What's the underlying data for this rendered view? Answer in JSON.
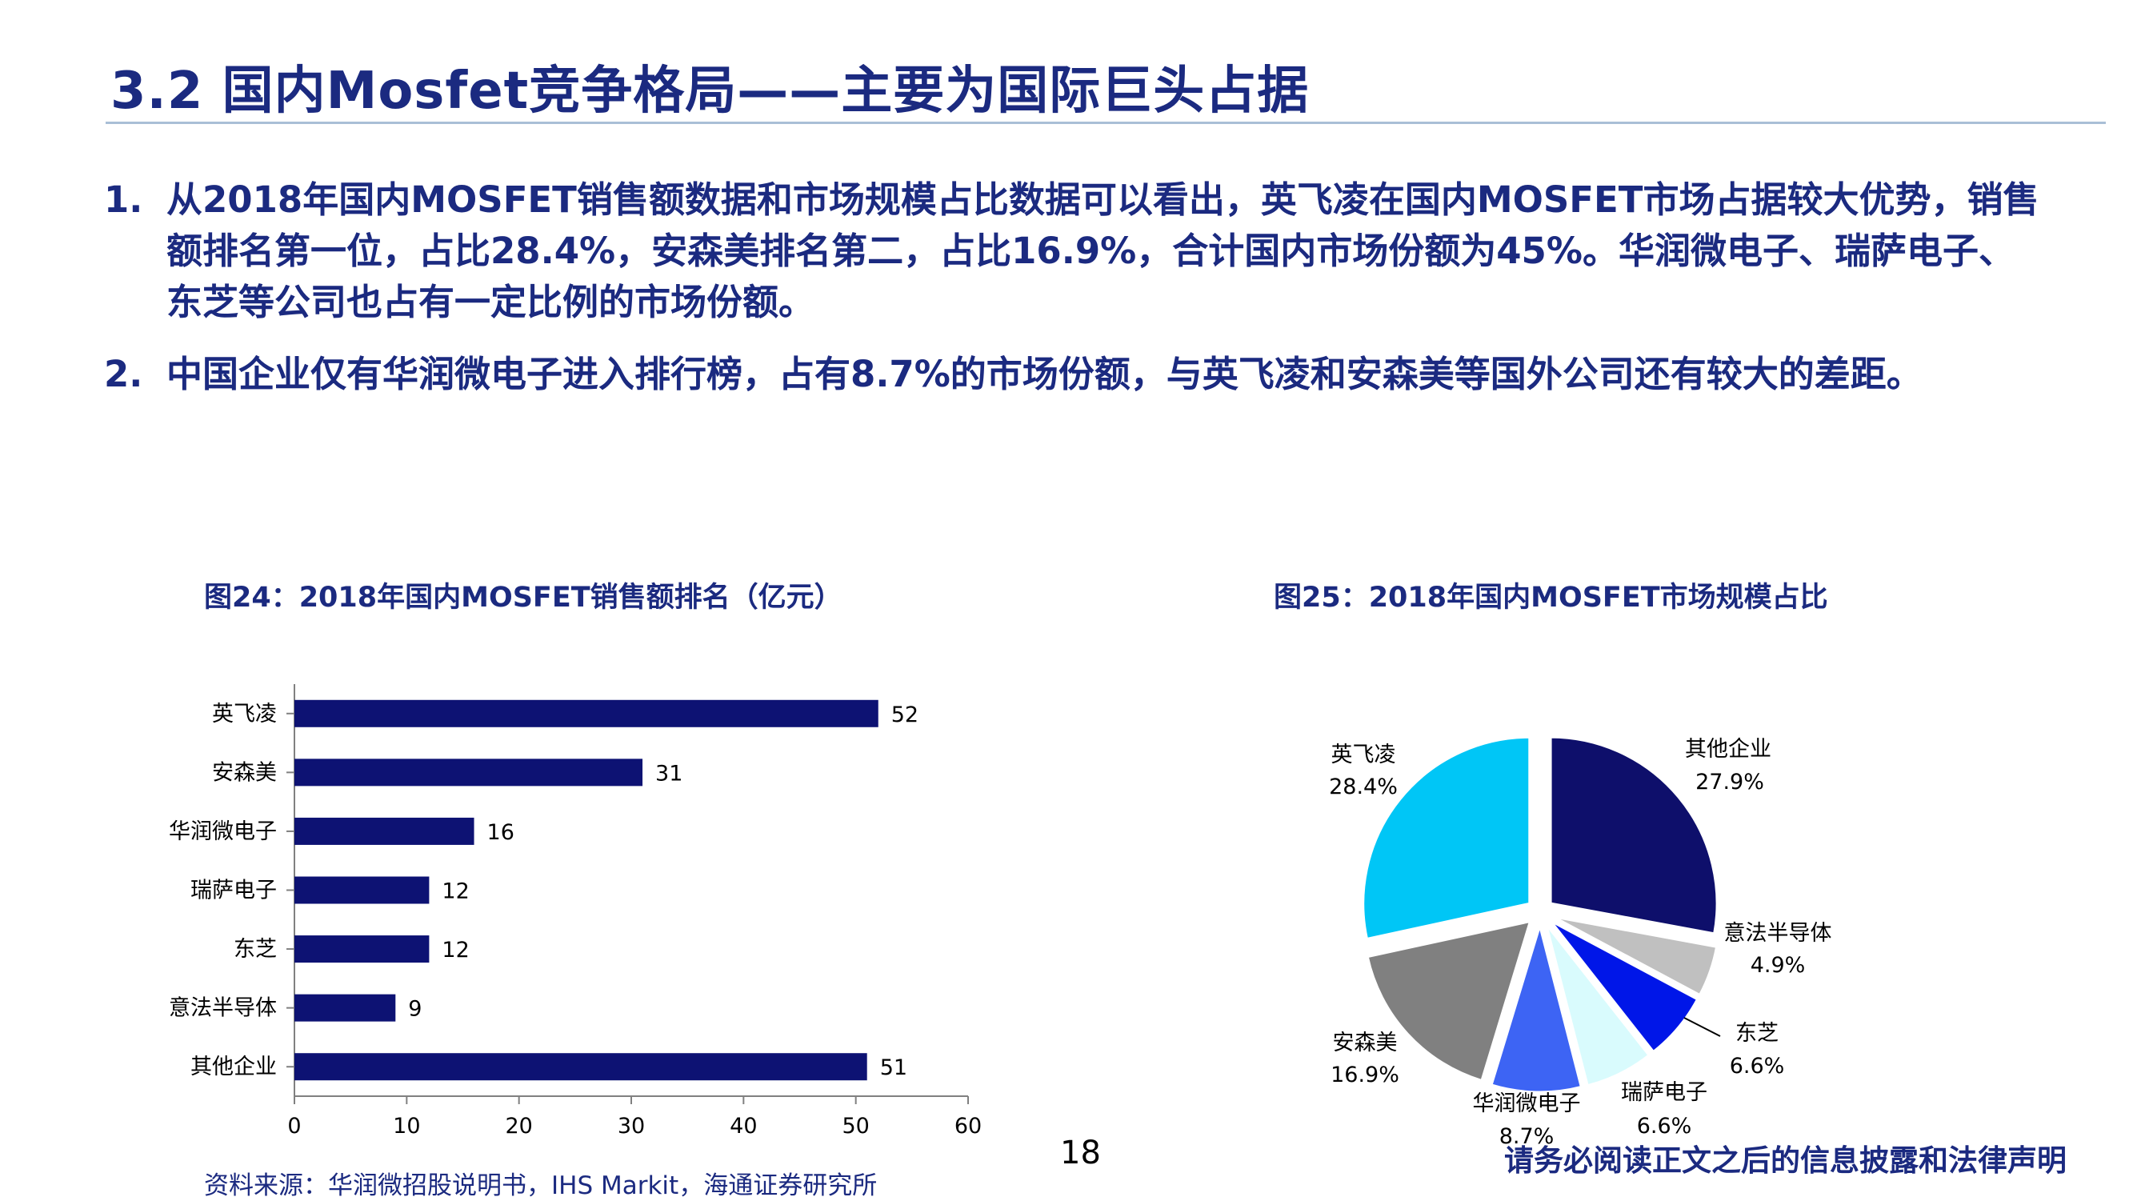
{
  "header": {
    "title": "3.2 国内Mosfet竞争格局——主要为国际巨头占据"
  },
  "bullets": [
    {
      "num": "1.",
      "text": "从2018年国内MOSFET销售额数据和市场规模占比数据可以看出，英飞凌在国内MOSFET市场占据较大优势，销售额排名第一位，占比28.4%，安森美排名第二，占比16.9%，合计国内市场份额为45%。华润微电子、瑞萨电子、东芝等公司也占有一定比例的市场份额。"
    },
    {
      "num": "2.",
      "text": "中国企业仅有华润微电子进入排行榜，占有8.7%的市场份额，与英飞凌和安森美等国外公司还有较大的差距。"
    }
  ],
  "fig24": {
    "title": "图24：2018年国内MOSFET销售额排名（亿元）"
  },
  "fig25": {
    "title": "图25：2018年国内MOSFET市场规模占比"
  },
  "chart_data": [
    {
      "type": "bar",
      "orientation": "horizontal",
      "categories": [
        "英飞凌",
        "安森美",
        "华润微电子",
        "瑞萨电子",
        "东芝",
        "意法半导体",
        "其他企业"
      ],
      "values": [
        52,
        31,
        16,
        12,
        12,
        9,
        51
      ],
      "xlim": [
        0,
        60
      ],
      "xticks": [
        0,
        10,
        20,
        30,
        40,
        50,
        60
      ],
      "bar_color": "#0d1273",
      "grid": false
    },
    {
      "type": "pie",
      "slices": [
        {
          "label": "其他企业",
          "value": 27.9,
          "text": "27.9%",
          "color": "#0e0f6b"
        },
        {
          "label": "意法半导体",
          "value": 4.9,
          "text": "4.9%",
          "color": "#c0c0c0"
        },
        {
          "label": "东芝",
          "value": 6.6,
          "text": "6.6%",
          "color": "#0016e8"
        },
        {
          "label": "瑞萨电子",
          "value": 6.6,
          "text": "6.6%",
          "color": "#d9fbfd"
        },
        {
          "label": "华润微电子",
          "value": 8.7,
          "text": "8.7%",
          "color": "#3d64f4"
        },
        {
          "label": "安森美",
          "value": 16.9,
          "text": "16.9%",
          "color": "#808080"
        },
        {
          "label": "英飞凌",
          "value": 28.4,
          "text": "28.4%",
          "color": "#00c6f6"
        }
      ]
    }
  ],
  "footer": {
    "page_number": "18",
    "disclaimer": "请务必阅读正文之后的信息披露和法律声明",
    "source": "资料来源：华润微招股说明书，IHS Markit，海通证券研究所"
  }
}
